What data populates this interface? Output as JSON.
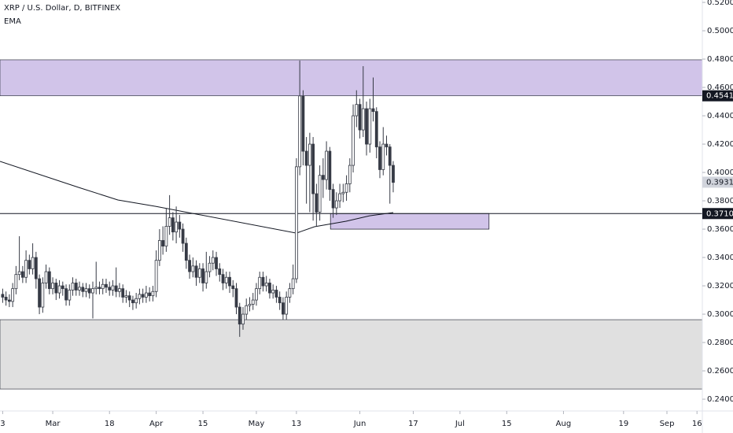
{
  "chart_data": {
    "type": "candlestick",
    "title": "XRP / U.S. Dollar, D, BITFINEX",
    "up_color": "#ffffff",
    "down_color": "#363a45",
    "border_color": "#363a45",
    "xlim": [
      -15.8,
      194.6
    ],
    "xticks": [
      {
        "value": -15,
        "label": "3"
      },
      {
        "value": 0,
        "label": "Mar"
      },
      {
        "value": 17,
        "label": "18"
      },
      {
        "value": 31,
        "label": "Apr"
      },
      {
        "value": 45,
        "label": "15"
      },
      {
        "value": 61,
        "label": "May"
      },
      {
        "value": 73,
        "label": "13"
      },
      {
        "value": 92,
        "label": "Jun"
      },
      {
        "value": 108,
        "label": "17"
      },
      {
        "value": 122,
        "label": "Jul"
      },
      {
        "value": 136,
        "label": "15"
      },
      {
        "value": 153,
        "label": "Aug"
      },
      {
        "value": 171,
        "label": "19"
      },
      {
        "value": 184,
        "label": "Sep"
      },
      {
        "value": 193,
        "label": "16"
      }
    ],
    "ylim": [
      0.2317,
      0.5217
    ],
    "yticks": [
      {
        "value": 0.24,
        "label": "0.24000"
      },
      {
        "value": 0.26,
        "label": "0.26000"
      },
      {
        "value": 0.28,
        "label": "0.28000"
      },
      {
        "value": 0.3,
        "label": "0.30000"
      },
      {
        "value": 0.32,
        "label": "0.32000"
      },
      {
        "value": 0.34,
        "label": "0.34000"
      },
      {
        "value": 0.36,
        "label": "0.36000"
      },
      {
        "value": 0.38,
        "label": "0.38000"
      },
      {
        "value": 0.4,
        "label": "0.40000"
      },
      {
        "value": 0.42,
        "label": "0.42000"
      },
      {
        "value": 0.44,
        "label": "0.44000"
      },
      {
        "value": 0.46,
        "label": "0.46000"
      },
      {
        "value": 0.48,
        "label": "0.48000"
      },
      {
        "value": 0.5,
        "label": "0.50000"
      },
      {
        "value": 0.52,
        "label": "0.52000"
      }
    ],
    "grid": false,
    "zones": [
      {
        "low": 0.4541,
        "high": 0.4795,
        "color": "#d1c4e9"
      },
      {
        "low": 0.2472,
        "high": 0.2961,
        "color": "#e0e0e0"
      },
      {
        "low": 0.36,
        "high": 0.371,
        "x": [
          83.2,
          130.7
        ],
        "color": "#d1c4e9"
      }
    ],
    "hlines": [
      0.371
    ],
    "price_labels": [
      {
        "value": 0.4541,
        "label": "0.45410",
        "color": "#131722"
      },
      {
        "value": 0.39313,
        "label": "0.39313",
        "color": "#d1d4dc"
      },
      {
        "value": 0.371,
        "label": "0.37100",
        "color": "#131722"
      }
    ],
    "ema": {
      "name": "EMA",
      "color": "#131722",
      "x": [
        -15.8,
        7.8,
        19.5,
        31,
        73,
        78.4,
        87.9,
        94.9,
        102
      ],
      "values": [
        0.4078,
        0.3894,
        0.3806,
        0.376,
        0.3572,
        0.3617,
        0.3656,
        0.3694,
        0.3717
      ]
    },
    "x": [
      -15,
      -14,
      -13,
      -12,
      -11,
      -10,
      -9,
      -8,
      -7,
      -6,
      -5,
      -4,
      -3,
      -2,
      -1,
      0,
      1,
      2,
      3,
      4,
      5,
      6,
      7,
      8,
      9,
      10,
      11,
      12,
      13,
      14,
      15,
      16,
      17,
      18,
      19,
      20,
      21,
      22,
      23,
      24,
      25,
      26,
      27,
      28,
      29,
      30,
      31,
      32,
      33,
      34,
      35,
      36,
      37,
      38,
      39,
      40,
      41,
      42,
      43,
      44,
      45,
      46,
      47,
      48,
      49,
      50,
      51,
      52,
      53,
      54,
      55,
      56,
      57,
      58,
      59,
      60,
      61,
      62,
      63,
      64,
      65,
      66,
      67,
      68,
      69,
      70,
      71,
      72,
      73,
      74,
      75,
      76,
      77,
      78,
      79,
      80,
      81,
      82,
      83,
      84,
      85,
      86,
      87,
      88,
      89,
      90,
      91,
      92,
      93,
      94,
      95,
      96,
      97,
      98,
      99,
      100,
      101,
      102
    ],
    "ohlc": [
      [
        0.314,
        0.318,
        0.308,
        0.312
      ],
      [
        0.312,
        0.316,
        0.306,
        0.31
      ],
      [
        0.31,
        0.314,
        0.305,
        0.309
      ],
      [
        0.309,
        0.322,
        0.305,
        0.318
      ],
      [
        0.318,
        0.334,
        0.314,
        0.328
      ],
      [
        0.328,
        0.355,
        0.324,
        0.33
      ],
      [
        0.33,
        0.334,
        0.322,
        0.326
      ],
      [
        0.326,
        0.345,
        0.322,
        0.338
      ],
      [
        0.338,
        0.342,
        0.328,
        0.332
      ],
      [
        0.332,
        0.35,
        0.328,
        0.34
      ],
      [
        0.34,
        0.344,
        0.318,
        0.325
      ],
      [
        0.325,
        0.328,
        0.3,
        0.305
      ],
      [
        0.305,
        0.326,
        0.301,
        0.322
      ],
      [
        0.322,
        0.335,
        0.318,
        0.33
      ],
      [
        0.33,
        0.333,
        0.314,
        0.318
      ],
      [
        0.318,
        0.326,
        0.314,
        0.322
      ],
      [
        0.322,
        0.325,
        0.31,
        0.315
      ],
      [
        0.315,
        0.324,
        0.311,
        0.32
      ],
      [
        0.32,
        0.323,
        0.313,
        0.318
      ],
      [
        0.318,
        0.321,
        0.306,
        0.31
      ],
      [
        0.31,
        0.321,
        0.306,
        0.317
      ],
      [
        0.317,
        0.326,
        0.313,
        0.322
      ],
      [
        0.322,
        0.325,
        0.313,
        0.317
      ],
      [
        0.317,
        0.323,
        0.313,
        0.319
      ],
      [
        0.319,
        0.322,
        0.312,
        0.316
      ],
      [
        0.316,
        0.322,
        0.312,
        0.318
      ],
      [
        0.318,
        0.321,
        0.311,
        0.315
      ],
      [
        0.315,
        0.323,
        0.297,
        0.318
      ],
      [
        0.318,
        0.337,
        0.314,
        0.319
      ],
      [
        0.319,
        0.323,
        0.314,
        0.318
      ],
      [
        0.318,
        0.325,
        0.314,
        0.321
      ],
      [
        0.321,
        0.325,
        0.315,
        0.319
      ],
      [
        0.319,
        0.323,
        0.313,
        0.317
      ],
      [
        0.317,
        0.324,
        0.313,
        0.32
      ],
      [
        0.32,
        0.333,
        0.312,
        0.316
      ],
      [
        0.316,
        0.322,
        0.312,
        0.318
      ],
      [
        0.318,
        0.321,
        0.308,
        0.312
      ],
      [
        0.312,
        0.317,
        0.308,
        0.313
      ],
      [
        0.313,
        0.316,
        0.305,
        0.31
      ],
      [
        0.31,
        0.313,
        0.303,
        0.308
      ],
      [
        0.308,
        0.315,
        0.304,
        0.311
      ],
      [
        0.311,
        0.318,
        0.307,
        0.314
      ],
      [
        0.314,
        0.318,
        0.308,
        0.312
      ],
      [
        0.312,
        0.32,
        0.308,
        0.315
      ],
      [
        0.315,
        0.319,
        0.309,
        0.313
      ],
      [
        0.313,
        0.32,
        0.309,
        0.316
      ],
      [
        0.316,
        0.345,
        0.312,
        0.338
      ],
      [
        0.338,
        0.36,
        0.334,
        0.352
      ],
      [
        0.352,
        0.362,
        0.342,
        0.348
      ],
      [
        0.348,
        0.375,
        0.344,
        0.362
      ],
      [
        0.362,
        0.384,
        0.356,
        0.368
      ],
      [
        0.368,
        0.372,
        0.352,
        0.358
      ],
      [
        0.358,
        0.376,
        0.35,
        0.365
      ],
      [
        0.365,
        0.37,
        0.354,
        0.36
      ],
      [
        0.36,
        0.364,
        0.344,
        0.35
      ],
      [
        0.35,
        0.354,
        0.332,
        0.338
      ],
      [
        0.338,
        0.342,
        0.325,
        0.33
      ],
      [
        0.33,
        0.34,
        0.326,
        0.334
      ],
      [
        0.334,
        0.338,
        0.32,
        0.326
      ],
      [
        0.326,
        0.336,
        0.322,
        0.332
      ],
      [
        0.332,
        0.336,
        0.316,
        0.322
      ],
      [
        0.322,
        0.344,
        0.318,
        0.33
      ],
      [
        0.33,
        0.341,
        0.326,
        0.336
      ],
      [
        0.336,
        0.345,
        0.331,
        0.34
      ],
      [
        0.34,
        0.344,
        0.327,
        0.332
      ],
      [
        0.332,
        0.336,
        0.323,
        0.328
      ],
      [
        0.328,
        0.332,
        0.317,
        0.322
      ],
      [
        0.322,
        0.33,
        0.318,
        0.326
      ],
      [
        0.326,
        0.33,
        0.315,
        0.32
      ],
      [
        0.32,
        0.324,
        0.312,
        0.318
      ],
      [
        0.318,
        0.322,
        0.3,
        0.305
      ],
      [
        0.305,
        0.308,
        0.284,
        0.293
      ],
      [
        0.293,
        0.305,
        0.289,
        0.3
      ],
      [
        0.3,
        0.311,
        0.296,
        0.306
      ],
      [
        0.306,
        0.312,
        0.302,
        0.307
      ],
      [
        0.307,
        0.315,
        0.303,
        0.31
      ],
      [
        0.31,
        0.322,
        0.306,
        0.318
      ],
      [
        0.318,
        0.33,
        0.314,
        0.326
      ],
      [
        0.326,
        0.33,
        0.316,
        0.32
      ],
      [
        0.32,
        0.327,
        0.316,
        0.322
      ],
      [
        0.322,
        0.325,
        0.311,
        0.315
      ],
      [
        0.315,
        0.321,
        0.311,
        0.317
      ],
      [
        0.317,
        0.32,
        0.308,
        0.312
      ],
      [
        0.312,
        0.316,
        0.303,
        0.308
      ],
      [
        0.308,
        0.312,
        0.296,
        0.3
      ],
      [
        0.3,
        0.316,
        0.296,
        0.312
      ],
      [
        0.312,
        0.322,
        0.308,
        0.318
      ],
      [
        0.318,
        0.335,
        0.314,
        0.325
      ],
      [
        0.325,
        0.41,
        0.322,
        0.404
      ],
      [
        0.404,
        0.479,
        0.398,
        0.454
      ],
      [
        0.454,
        0.458,
        0.405,
        0.415
      ],
      [
        0.415,
        0.425,
        0.378,
        0.405
      ],
      [
        0.405,
        0.428,
        0.372,
        0.42
      ],
      [
        0.42,
        0.425,
        0.366,
        0.385
      ],
      [
        0.385,
        0.392,
        0.362,
        0.372
      ],
      [
        0.372,
        0.405,
        0.366,
        0.398
      ],
      [
        0.398,
        0.41,
        0.382,
        0.395
      ],
      [
        0.395,
        0.422,
        0.388,
        0.415
      ],
      [
        0.415,
        0.418,
        0.38,
        0.388
      ],
      [
        0.388,
        0.392,
        0.368,
        0.375
      ],
      [
        0.375,
        0.386,
        0.37,
        0.38
      ],
      [
        0.38,
        0.392,
        0.375,
        0.385
      ],
      [
        0.385,
        0.392,
        0.379,
        0.386
      ],
      [
        0.386,
        0.398,
        0.38,
        0.392
      ],
      [
        0.392,
        0.41,
        0.386,
        0.405
      ],
      [
        0.405,
        0.448,
        0.4,
        0.44
      ],
      [
        0.44,
        0.458,
        0.432,
        0.448
      ],
      [
        0.448,
        0.452,
        0.424,
        0.43
      ],
      [
        0.43,
        0.475,
        0.425,
        0.445
      ],
      [
        0.445,
        0.45,
        0.412,
        0.42
      ],
      [
        0.42,
        0.452,
        0.414,
        0.445
      ],
      [
        0.445,
        0.467,
        0.436,
        0.443
      ],
      [
        0.443,
        0.446,
        0.41,
        0.418
      ],
      [
        0.418,
        0.422,
        0.396,
        0.402
      ],
      [
        0.402,
        0.432,
        0.398,
        0.42
      ],
      [
        0.42,
        0.426,
        0.412,
        0.418
      ],
      [
        0.418,
        0.42,
        0.378,
        0.405
      ],
      [
        0.405,
        0.408,
        0.386,
        0.393
      ]
    ]
  }
}
